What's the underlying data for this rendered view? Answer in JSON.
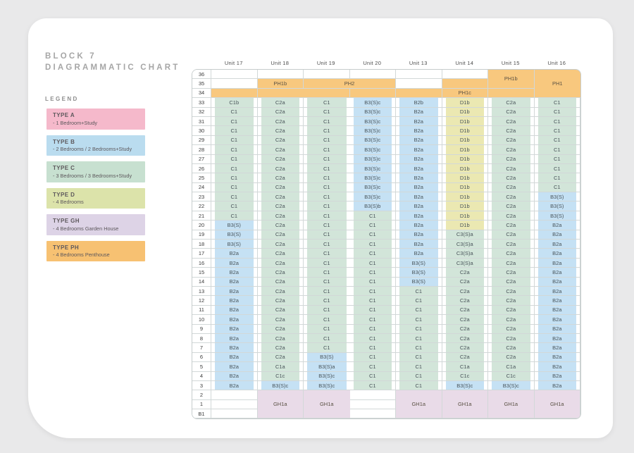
{
  "page": {
    "background": "#e9e9ea",
    "card_color": "#ffffff"
  },
  "title": {
    "line1": "BLOCK 7",
    "line2": "DIAGRAMMATIC CHART"
  },
  "legend": {
    "heading": "LEGEND",
    "items": [
      {
        "label": "TYPE A",
        "desc": "- 1 Bedroom+Study",
        "color": "#f5b9cb"
      },
      {
        "label": "TYPE B",
        "desc": "- 2 Bedrooms / 2 Bedrooms+Study",
        "color": "#badcef"
      },
      {
        "label": "TYPE C",
        "desc": "- 3 Bedrooms / 3 Bedrooms+Study",
        "color": "#c7e0d0"
      },
      {
        "label": "TYPE D",
        "desc": "- 4 Bedrooms",
        "color": "#dce3aa"
      },
      {
        "label": "TYPE GH",
        "desc": "- 4 Bedrooms Garden House",
        "color": "#ddd3e6"
      },
      {
        "label": "TYPE PH",
        "desc": "- 4 Bedrooms Penthouse",
        "color": "#f7c172"
      }
    ]
  },
  "chart": {
    "units": [
      "Unit 17",
      "Unit 18",
      "Unit 19",
      "Unit 20",
      "Unit 13",
      "Unit 14",
      "Unit 15",
      "Unit 16"
    ],
    "cell_colors": {
      "B": "#c5e1f4",
      "C": "#d2e5d9",
      "D": "#ebe8b2",
      "GH": "#e9dbe8",
      "PH": "#f8c87e",
      "W": "#ffffff"
    },
    "rows": [
      {
        "f": "36",
        "cells": [
          "",
          "",
          "",
          "",
          "",
          "",
          {
            "t": "PH1b",
            "k": "PH",
            "rs": 2
          },
          {
            "t": "PH1",
            "k": "PH",
            "rs": 3
          }
        ]
      },
      {
        "f": "35",
        "cells": [
          "",
          {
            "t": "PH1b",
            "k": "PH"
          },
          {
            "t": "PH2",
            "k": "PH",
            "cs": 2
          },
          null,
          "",
          {
            "t": "",
            "k": "PH"
          },
          null,
          null
        ]
      },
      {
        "f": "34",
        "cells": [
          {
            "t": "",
            "k": "PH"
          },
          {
            "t": "",
            "k": "PH"
          },
          {
            "t": "",
            "k": "PH"
          },
          {
            "t": "",
            "k": "PH"
          },
          {
            "t": "",
            "k": "PH"
          },
          {
            "t": "PH1c",
            "k": "PH"
          },
          {
            "t": "",
            "k": "PH"
          },
          null
        ]
      },
      {
        "f": "33",
        "cells": [
          "C1b",
          "C2a",
          "C1",
          "B3(S)c",
          "B2b",
          "D1b",
          "C2a",
          "C1"
        ]
      },
      {
        "f": "32",
        "cells": [
          "C1",
          "C2a",
          "C1",
          "B3(S)c",
          "B2a",
          "D1b",
          "C2a",
          "C1"
        ]
      },
      {
        "f": "31",
        "cells": [
          "C1",
          "C2a",
          "C1",
          "B3(S)c",
          "B2a",
          "D1b",
          "C2a",
          "C1"
        ]
      },
      {
        "f": "30",
        "cells": [
          "C1",
          "C2a",
          "C1",
          "B3(S)c",
          "B2a",
          "D1b",
          "C2a",
          "C1"
        ]
      },
      {
        "f": "29",
        "cells": [
          "C1",
          "C2a",
          "C1",
          "B3(S)c",
          "B2a",
          "D1b",
          "C2a",
          "C1"
        ]
      },
      {
        "f": "28",
        "cells": [
          "C1",
          "C2a",
          "C1",
          "B3(S)c",
          "B2a",
          "D1b",
          "C2a",
          "C1"
        ]
      },
      {
        "f": "27",
        "cells": [
          "C1",
          "C2a",
          "C1",
          "B3(S)c",
          "B2a",
          "D1b",
          "C2a",
          "C1"
        ]
      },
      {
        "f": "26",
        "cells": [
          "C1",
          "C2a",
          "C1",
          "B3(S)c",
          "B2a",
          "D1b",
          "C2a",
          "C1"
        ]
      },
      {
        "f": "25",
        "cells": [
          "C1",
          "C2a",
          "C1",
          "B3(S)c",
          "B2a",
          "D1b",
          "C2a",
          "C1"
        ]
      },
      {
        "f": "24",
        "cells": [
          "C1",
          "C2a",
          "C1",
          "B3(S)c",
          "B2a",
          "D1b",
          "C2a",
          "C1"
        ]
      },
      {
        "f": "23",
        "cells": [
          "C1",
          "C2a",
          "C1",
          "B3(S)c",
          "B2a",
          "D1b",
          "C2a",
          "B3(S)"
        ]
      },
      {
        "f": "22",
        "cells": [
          "C1",
          "C2a",
          "C1",
          "B3(S)b",
          "B2a",
          "D1b",
          "C2a",
          "B3(S)"
        ]
      },
      {
        "f": "21",
        "cells": [
          "C1",
          "C2a",
          "C1",
          "C1",
          "B2a",
          "D1b",
          "C2a",
          "B3(S)"
        ]
      },
      {
        "f": "20",
        "cells": [
          "B3(S)",
          "C2a",
          "C1",
          "C1",
          "B2a",
          "D1b",
          "C2a",
          "B2a"
        ]
      },
      {
        "f": "19",
        "cells": [
          "B3(S)",
          "C2a",
          "C1",
          "C1",
          "B2a",
          "C3(S)a",
          "C2a",
          "B2a"
        ]
      },
      {
        "f": "18",
        "cells": [
          "B3(S)",
          "C2a",
          "C1",
          "C1",
          "B2a",
          "C3(S)a",
          "C2a",
          "B2a"
        ]
      },
      {
        "f": "17",
        "cells": [
          "B2a",
          "C2a",
          "C1",
          "C1",
          "B2a",
          "C3(S)a",
          "C2a",
          "B2a"
        ]
      },
      {
        "f": "16",
        "cells": [
          "B2a",
          "C2a",
          "C1",
          "C1",
          "B3(S)",
          "C3(S)a",
          "C2a",
          "B2a"
        ]
      },
      {
        "f": "15",
        "cells": [
          "B2a",
          "C2a",
          "C1",
          "C1",
          "B3(S)",
          "C2a",
          "C2a",
          "B2a"
        ]
      },
      {
        "f": "14",
        "cells": [
          "B2a",
          "C2a",
          "C1",
          "C1",
          "B3(S)",
          "C2a",
          "C2a",
          "B2a"
        ]
      },
      {
        "f": "13",
        "cells": [
          "B2a",
          "C2a",
          "C1",
          "C1",
          "C1",
          "C2a",
          "C2a",
          "B2a"
        ]
      },
      {
        "f": "12",
        "cells": [
          "B2a",
          "C2a",
          "C1",
          "C1",
          "C1",
          "C2a",
          "C2a",
          "B2a"
        ]
      },
      {
        "f": "11",
        "cells": [
          "B2a",
          "C2a",
          "C1",
          "C1",
          "C1",
          "C2a",
          "C2a",
          "B2a"
        ]
      },
      {
        "f": "10",
        "cells": [
          "B2a",
          "C2a",
          "C1",
          "C1",
          "C1",
          "C2a",
          "C2a",
          "B2a"
        ]
      },
      {
        "f": "9",
        "cells": [
          "B2a",
          "C2a",
          "C1",
          "C1",
          "C1",
          "C2a",
          "C2a",
          "B2a"
        ]
      },
      {
        "f": "8",
        "cells": [
          "B2a",
          "C2a",
          "C1",
          "C1",
          "C1",
          "C2a",
          "C2a",
          "B2a"
        ]
      },
      {
        "f": "7",
        "cells": [
          "B2a",
          "C2a",
          "C1",
          "C1",
          "C1",
          "C2a",
          "C2a",
          "B2a"
        ]
      },
      {
        "f": "6",
        "cells": [
          "B2a",
          "C2a",
          "B3(S)",
          "C1",
          "C1",
          "C2a",
          "C2a",
          "B2a"
        ]
      },
      {
        "f": "5",
        "cells": [
          "B2a",
          "C1a",
          "B3(S)a",
          "C1",
          "C1",
          "C1a",
          "C1a",
          "B2a"
        ]
      },
      {
        "f": "4",
        "cells": [
          "B2a",
          "C1c",
          "B3(S)c",
          "C1",
          "C1",
          "C1c",
          "C1c",
          "B2a"
        ]
      },
      {
        "f": "3",
        "cells": [
          "B2a",
          "B3(S)c",
          "B3(S)c",
          "C1",
          "C1",
          "B3(S)c",
          "B3(S)c",
          "B2a"
        ]
      },
      {
        "f": "2",
        "cells": [
          "",
          {
            "t": "GH1a",
            "k": "GH",
            "rs": 3
          },
          {
            "t": "GH1a",
            "k": "GH",
            "rs": 3
          },
          "",
          {
            "t": "GH1a",
            "k": "GH",
            "rs": 3
          },
          {
            "t": "GH1a",
            "k": "GH",
            "rs": 3
          },
          {
            "t": "GH1a",
            "k": "GH",
            "rs": 3
          },
          {
            "t": "GH1a",
            "k": "GH",
            "rs": 3
          }
        ]
      },
      {
        "f": "1",
        "cells": [
          "",
          null,
          null,
          "",
          null,
          null,
          null,
          null
        ]
      },
      {
        "f": "B1",
        "cells": [
          "",
          null,
          null,
          "",
          null,
          null,
          null,
          null
        ]
      }
    ]
  }
}
